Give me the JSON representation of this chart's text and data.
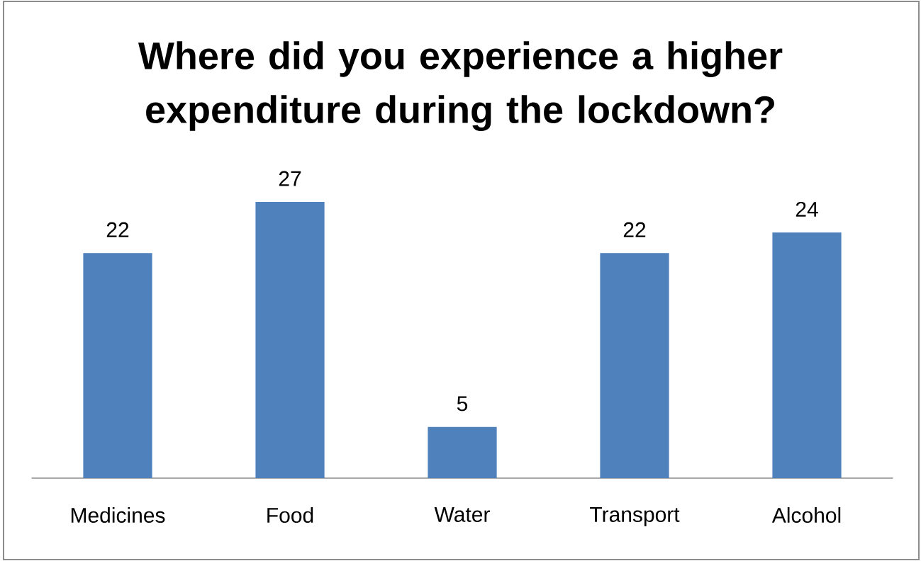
{
  "chart_data": {
    "type": "bar",
    "title": "Where did you experience a higher expenditure during the lockdown?",
    "categories": [
      "Medicines",
      "Food",
      "Water",
      "Transport",
      "Alcohol"
    ],
    "values": [
      22,
      27,
      5,
      22,
      24
    ],
    "color": "#4f81bd",
    "data_labels": true
  }
}
